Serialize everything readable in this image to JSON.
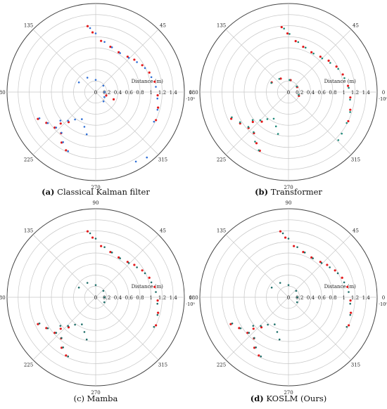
{
  "chart_data": [
    {
      "type": "polar-scatter",
      "panel": "(a)",
      "caption_letter": "(a)",
      "caption": "Classical Kalman filter",
      "radial_label": "Distance (m)",
      "radial_ticks": [
        "0",
        "0.2",
        "0.4",
        "0.6",
        "0.8",
        "1",
        "1.2",
        "1.4"
      ],
      "radial_range": [
        0,
        1.6
      ],
      "radial_multiplier": "·10⁵",
      "angle_labels": [
        "0",
        "45",
        "90",
        "135",
        "180",
        "225",
        "270",
        "315"
      ],
      "grid": true,
      "series": [
        {
          "name": "",
          "color": "#e41a1c",
          "points": [
            [
              97,
              1.2
            ],
            [
              93,
              1.08
            ],
            [
              84,
              0.93
            ],
            [
              72,
              0.86
            ],
            [
              60,
              0.83
            ],
            [
              48,
              0.86
            ],
            [
              40,
              0.91
            ],
            [
              30,
              0.97
            ],
            [
              20,
              1.03
            ],
            [
              10,
              1.08
            ],
            [
              -3,
              1.12
            ],
            [
              -14,
              1.16
            ],
            [
              -25,
              1.2
            ],
            [
              -22,
              0.35
            ],
            [
              -18,
              0.2
            ],
            [
              205,
              1.15
            ],
            [
              212,
              1.05
            ],
            [
              221,
              0.98
            ],
            [
              230,
              0.97
            ],
            [
              236,
              1.1
            ],
            [
              243,
              1.18
            ],
            [
              222,
              0.85
            ],
            [
              228,
              0.73
            ]
          ]
        },
        {
          "name": "",
          "color": "#2f6fd6",
          "points": [
            [
              95,
              1.16
            ],
            [
              90,
              1.06
            ],
            [
              80,
              0.92
            ],
            [
              70,
              0.86
            ],
            [
              58,
              0.83
            ],
            [
              46,
              0.86
            ],
            [
              36,
              0.92
            ],
            [
              26,
              0.99
            ],
            [
              15,
              1.04
            ],
            [
              5,
              1.09
            ],
            [
              -6,
              1.12
            ],
            [
              -16,
              1.16
            ],
            [
              -27,
              1.18
            ],
            [
              -52,
              1.5
            ],
            [
              -60,
              1.45
            ],
            [
              150,
              0.35
            ],
            [
              120,
              0.3
            ],
            [
              90,
              0.22
            ],
            [
              40,
              0.18
            ],
            [
              0,
              0.16
            ],
            [
              -30,
              0.18
            ],
            [
              -50,
              0.22
            ],
            [
              205,
              1.12
            ],
            [
              213,
              1.03
            ],
            [
              222,
              0.96
            ],
            [
              230,
              0.96
            ],
            [
              237,
              1.08
            ],
            [
              245,
              1.18
            ],
            [
              219,
              0.82
            ],
            [
              226,
              0.72
            ],
            [
              233,
              0.62
            ],
            [
              243,
              0.55
            ],
            [
              252,
              0.66
            ],
            [
              258,
              0.78
            ]
          ]
        }
      ]
    },
    {
      "type": "polar-scatter",
      "panel": "(b)",
      "caption_letter": "(b)",
      "caption": "Transformer",
      "radial_label": "Distance (m)",
      "radial_ticks": [
        "0",
        "0.2",
        "0.4",
        "0.6",
        "0.8",
        "1",
        "1.2",
        "1.4"
      ],
      "radial_range": [
        0,
        1.6
      ],
      "radial_multiplier": "·10⁵",
      "angle_labels": [
        "0",
        "45",
        "90",
        "135",
        "180",
        "225",
        "270",
        "315"
      ],
      "grid": true,
      "series": [
        {
          "name": "",
          "color": "#e41a1c",
          "points": [
            [
              96,
              1.18
            ],
            [
              91,
              1.06
            ],
            [
              82,
              0.93
            ],
            [
              72,
              0.86
            ],
            [
              60,
              0.83
            ],
            [
              48,
              0.86
            ],
            [
              38,
              0.92
            ],
            [
              28,
              0.98
            ],
            [
              18,
              1.03
            ],
            [
              6,
              1.08
            ],
            [
              -5,
              1.12
            ],
            [
              -16,
              1.16
            ],
            [
              -26,
              1.2
            ],
            [
              150,
              0.35
            ],
            [
              120,
              0.28
            ],
            [
              80,
              0.22
            ],
            [
              30,
              0.18
            ],
            [
              -20,
              0.2
            ],
            [
              205,
              1.14
            ],
            [
              213,
              1.04
            ],
            [
              222,
              0.97
            ],
            [
              230,
              0.97
            ],
            [
              238,
              1.09
            ],
            [
              244,
              1.18
            ],
            [
              220,
              0.84
            ],
            [
              228,
              0.72
            ]
          ]
        },
        {
          "name": "",
          "color": "#1f8a7a",
          "points": [
            [
              94,
              1.15
            ],
            [
              89,
              1.05
            ],
            [
              79,
              0.92
            ],
            [
              69,
              0.86
            ],
            [
              57,
              0.83
            ],
            [
              45,
              0.86
            ],
            [
              35,
              0.92
            ],
            [
              25,
              0.99
            ],
            [
              14,
              1.04
            ],
            [
              4,
              1.09
            ],
            [
              -7,
              1.12
            ],
            [
              -18,
              1.17
            ],
            [
              -28,
              1.19
            ],
            [
              -38,
              1.22
            ],
            [
              -44,
              1.25
            ],
            [
              152,
              0.35
            ],
            [
              125,
              0.29
            ],
            [
              85,
              0.22
            ],
            [
              35,
              0.18
            ],
            [
              -15,
              0.19
            ],
            [
              204,
              1.12
            ],
            [
              212,
              1.03
            ],
            [
              221,
              0.96
            ],
            [
              229,
              0.96
            ],
            [
              236,
              1.08
            ],
            [
              243,
              1.18
            ],
            [
              218,
              0.82
            ],
            [
              225,
              0.72
            ],
            [
              232,
              0.62
            ],
            [
              241,
              0.55
            ],
            [
              250,
              0.66
            ],
            [
              256,
              0.78
            ]
          ]
        }
      ]
    },
    {
      "type": "polar-scatter",
      "panel": "(c)",
      "caption_letter": "",
      "caption": "(c) Mamba",
      "radial_label": "Distance (m)",
      "radial_ticks": [
        "0",
        "0.2",
        "0.4",
        "0.6",
        "0.8",
        "1",
        "1.2",
        "1.4"
      ],
      "radial_range": [
        0,
        1.6
      ],
      "radial_multiplier": "·10⁵",
      "angle_labels": [
        "0",
        "45",
        "90",
        "135",
        "180",
        "225",
        "270",
        "315"
      ],
      "grid": true,
      "series": [
        {
          "name": "",
          "color": "#e41a1c",
          "points": [
            [
              97,
              1.2
            ],
            [
              93,
              1.08
            ],
            [
              84,
              0.93
            ],
            [
              72,
              0.86
            ],
            [
              60,
              0.83
            ],
            [
              48,
              0.86
            ],
            [
              40,
              0.91
            ],
            [
              30,
              0.97
            ],
            [
              20,
              1.03
            ],
            [
              10,
              1.08
            ],
            [
              -3,
              1.12
            ],
            [
              -14,
              1.16
            ],
            [
              -25,
              1.2
            ],
            [
              205,
              1.15
            ],
            [
              212,
              1.05
            ],
            [
              221,
              0.98
            ],
            [
              230,
              0.97
            ],
            [
              236,
              1.1
            ],
            [
              243,
              1.18
            ],
            [
              222,
              0.85
            ],
            [
              228,
              0.73
            ]
          ]
        },
        {
          "name": "",
          "color": "#1f6f6a",
          "points": [
            [
              95,
              1.16
            ],
            [
              90,
              1.06
            ],
            [
              80,
              0.92
            ],
            [
              70,
              0.86
            ],
            [
              58,
              0.83
            ],
            [
              46,
              0.86
            ],
            [
              36,
              0.92
            ],
            [
              26,
              0.99
            ],
            [
              15,
              1.04
            ],
            [
              5,
              1.09
            ],
            [
              -6,
              1.12
            ],
            [
              -16,
              1.16
            ],
            [
              -27,
              1.18
            ],
            [
              150,
              0.35
            ],
            [
              120,
              0.3
            ],
            [
              90,
              0.22
            ],
            [
              40,
              0.18
            ],
            [
              0,
              0.16
            ],
            [
              -30,
              0.18
            ],
            [
              205,
              1.12
            ],
            [
              213,
              1.03
            ],
            [
              222,
              0.96
            ],
            [
              230,
              0.96
            ],
            [
              237,
              1.08
            ],
            [
              245,
              1.18
            ],
            [
              219,
              0.82
            ],
            [
              226,
              0.72
            ],
            [
              233,
              0.62
            ],
            [
              243,
              0.55
            ],
            [
              252,
              0.66
            ],
            [
              258,
              0.78
            ]
          ]
        }
      ]
    },
    {
      "type": "polar-scatter",
      "panel": "(d)",
      "caption_letter": "(d)",
      "caption": "KOSLM (Ours)",
      "radial_label": "Distance (m)",
      "radial_ticks": [
        "0",
        "0.2",
        "0.4",
        "0.6",
        "0.8",
        "1",
        "1.2",
        "1.4"
      ],
      "radial_range": [
        0,
        1.6
      ],
      "radial_multiplier": "·10⁵",
      "angle_labels": [
        "0",
        "45",
        "90",
        "135",
        "180",
        "225",
        "270",
        "315"
      ],
      "grid": true,
      "series": [
        {
          "name": "",
          "color": "#e41a1c",
          "points": [
            [
              97,
              1.2
            ],
            [
              93,
              1.08
            ],
            [
              84,
              0.93
            ],
            [
              72,
              0.86
            ],
            [
              60,
              0.83
            ],
            [
              48,
              0.86
            ],
            [
              40,
              0.91
            ],
            [
              30,
              0.97
            ],
            [
              20,
              1.03
            ],
            [
              10,
              1.08
            ],
            [
              -3,
              1.12
            ],
            [
              -14,
              1.16
            ],
            [
              -25,
              1.2
            ],
            [
              205,
              1.15
            ],
            [
              212,
              1.05
            ],
            [
              221,
              0.98
            ],
            [
              230,
              0.97
            ],
            [
              236,
              1.1
            ],
            [
              243,
              1.18
            ],
            [
              222,
              0.85
            ],
            [
              228,
              0.73
            ]
          ]
        },
        {
          "name": "",
          "color": "#1f6f6a",
          "points": [
            [
              95,
              1.16
            ],
            [
              90,
              1.06
            ],
            [
              80,
              0.92
            ],
            [
              70,
              0.86
            ],
            [
              58,
              0.83
            ],
            [
              46,
              0.86
            ],
            [
              36,
              0.92
            ],
            [
              26,
              0.99
            ],
            [
              15,
              1.04
            ],
            [
              5,
              1.09
            ],
            [
              -6,
              1.12
            ],
            [
              -16,
              1.16
            ],
            [
              -27,
              1.18
            ],
            [
              150,
              0.35
            ],
            [
              120,
              0.3
            ],
            [
              90,
              0.22
            ],
            [
              40,
              0.18
            ],
            [
              0,
              0.16
            ],
            [
              -30,
              0.18
            ],
            [
              205,
              1.12
            ],
            [
              213,
              1.03
            ],
            [
              222,
              0.96
            ],
            [
              230,
              0.96
            ],
            [
              237,
              1.08
            ],
            [
              245,
              1.18
            ],
            [
              219,
              0.82
            ],
            [
              226,
              0.72
            ],
            [
              233,
              0.62
            ],
            [
              243,
              0.55
            ],
            [
              252,
              0.66
            ],
            [
              258,
              0.78
            ]
          ]
        }
      ]
    }
  ]
}
